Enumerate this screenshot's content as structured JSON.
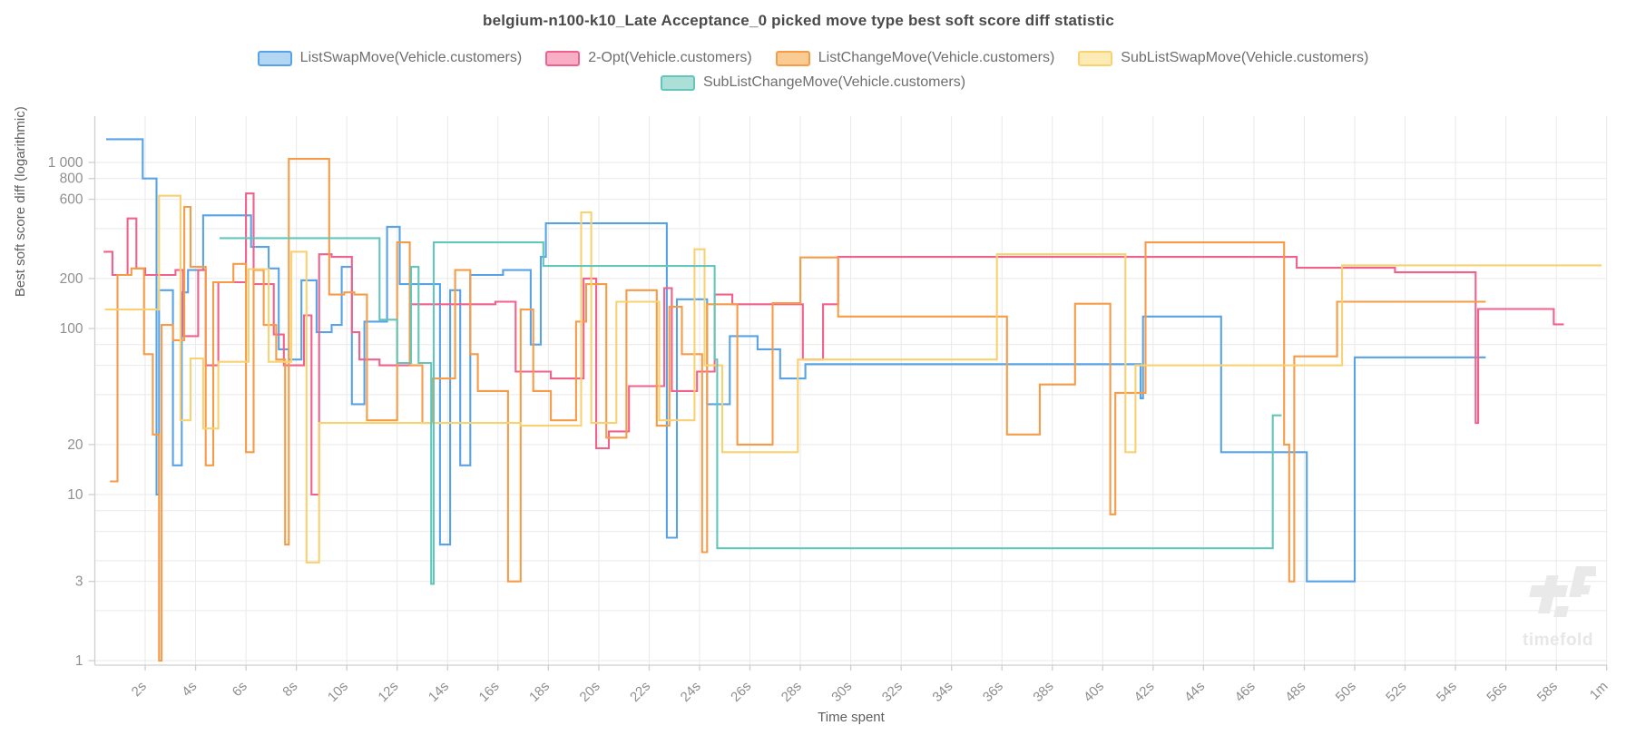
{
  "title": "belgium-n100-k10_Late Acceptance_0 picked move type best soft score diff statistic",
  "watermark": {
    "text": "timefold"
  },
  "chart_data": {
    "type": "line",
    "step": "after",
    "title": "belgium-n100-k10_Late Acceptance_0 picked move type best soft score diff statistic",
    "xlabel": "Time spent",
    "ylabel": "Best soft score diff (logarithmic)",
    "x_unit": "seconds",
    "y_scale": "log",
    "ylim": [
      1,
      2000
    ],
    "xlim": [
      0,
      60
    ],
    "grid": true,
    "legend_position": "top",
    "x_ticks": [
      {
        "t": 2,
        "label": "2s"
      },
      {
        "t": 4,
        "label": "4s"
      },
      {
        "t": 6,
        "label": "6s"
      },
      {
        "t": 8,
        "label": "8s"
      },
      {
        "t": 10,
        "label": "10s"
      },
      {
        "t": 12,
        "label": "12s"
      },
      {
        "t": 14,
        "label": "14s"
      },
      {
        "t": 16,
        "label": "16s"
      },
      {
        "t": 18,
        "label": "18s"
      },
      {
        "t": 20,
        "label": "20s"
      },
      {
        "t": 22,
        "label": "22s"
      },
      {
        "t": 24,
        "label": "24s"
      },
      {
        "t": 26,
        "label": "26s"
      },
      {
        "t": 28,
        "label": "28s"
      },
      {
        "t": 30,
        "label": "30s"
      },
      {
        "t": 32,
        "label": "32s"
      },
      {
        "t": 34,
        "label": "34s"
      },
      {
        "t": 36,
        "label": "36s"
      },
      {
        "t": 38,
        "label": "38s"
      },
      {
        "t": 40,
        "label": "40s"
      },
      {
        "t": 42,
        "label": "42s"
      },
      {
        "t": 44,
        "label": "44s"
      },
      {
        "t": 46,
        "label": "46s"
      },
      {
        "t": 48,
        "label": "48s"
      },
      {
        "t": 50,
        "label": "50s"
      },
      {
        "t": 52,
        "label": "52s"
      },
      {
        "t": 54,
        "label": "54s"
      },
      {
        "t": 56,
        "label": "56s"
      },
      {
        "t": 58,
        "label": "58s"
      },
      {
        "t": 60,
        "label": "1m"
      }
    ],
    "y_ticks": [
      {
        "v": 1000,
        "label": "1 000"
      },
      {
        "v": 800,
        "label": "800"
      },
      {
        "v": 600,
        "label": "600"
      },
      {
        "v": 200,
        "label": "200"
      },
      {
        "v": 100,
        "label": "100"
      },
      {
        "v": 20,
        "label": "20"
      },
      {
        "v": 10,
        "label": "10"
      },
      {
        "v": 3,
        "label": "3"
      },
      {
        "v": 1,
        "label": "1"
      }
    ],
    "y_gridlines": [
      1,
      2,
      3,
      4,
      6,
      8,
      10,
      20,
      40,
      60,
      80,
      100,
      200,
      400,
      600,
      800,
      1000
    ],
    "series": [
      {
        "name": "ListSwapMove(Vehicle.customers)",
        "color": "#58a3e8",
        "fill": "#b3d7f2",
        "points": [
          [
            0.45,
            1380
          ],
          [
            1.9,
            800
          ],
          [
            2.45,
            10
          ],
          [
            2.55,
            170
          ],
          [
            3.1,
            15
          ],
          [
            3.45,
            165
          ],
          [
            3.7,
            225
          ],
          [
            4.3,
            480
          ],
          [
            6.2,
            310
          ],
          [
            6.9,
            230
          ],
          [
            7.3,
            75
          ],
          [
            7.7,
            65
          ],
          [
            8.2,
            195
          ],
          [
            8.8,
            95
          ],
          [
            9.4,
            105
          ],
          [
            9.8,
            235
          ],
          [
            10.2,
            35
          ],
          [
            10.7,
            110
          ],
          [
            11.6,
            410
          ],
          [
            12.1,
            185
          ],
          [
            13.7,
            5
          ],
          [
            14.1,
            170
          ],
          [
            14.5,
            15
          ],
          [
            14.9,
            210
          ],
          [
            16.2,
            225
          ],
          [
            17.3,
            80
          ],
          [
            17.7,
            270
          ],
          [
            17.9,
            430
          ],
          [
            22.7,
            5.5
          ],
          [
            23.1,
            150
          ],
          [
            24.3,
            35
          ],
          [
            25.2,
            90
          ],
          [
            26.3,
            75
          ],
          [
            27.2,
            50
          ],
          [
            28.2,
            61
          ],
          [
            41.5,
            38
          ],
          [
            41.6,
            118
          ],
          [
            44.7,
            18
          ],
          [
            48.1,
            3
          ],
          [
            50.0,
            67
          ],
          [
            55.2,
            67
          ]
        ]
      },
      {
        "name": "2-Opt(Vehicle.customers)",
        "color": "#f0618c",
        "fill": "#f7aec6",
        "points": [
          [
            0.35,
            290
          ],
          [
            0.7,
            210
          ],
          [
            1.3,
            460
          ],
          [
            1.65,
            230
          ],
          [
            2.0,
            210
          ],
          [
            3.2,
            225
          ],
          [
            3.5,
            90
          ],
          [
            4.1,
            225
          ],
          [
            4.4,
            60
          ],
          [
            4.9,
            190
          ],
          [
            6.0,
            650
          ],
          [
            6.3,
            185
          ],
          [
            7.1,
            92
          ],
          [
            7.5,
            60
          ],
          [
            8.3,
            120
          ],
          [
            8.6,
            10
          ],
          [
            8.9,
            280
          ],
          [
            9.4,
            270
          ],
          [
            10.2,
            95
          ],
          [
            10.5,
            65
          ],
          [
            11.3,
            60
          ],
          [
            12.5,
            140
          ],
          [
            15.9,
            145
          ],
          [
            16.7,
            55
          ],
          [
            18.1,
            50
          ],
          [
            19.4,
            200
          ],
          [
            19.9,
            19
          ],
          [
            20.4,
            24
          ],
          [
            21.2,
            45
          ],
          [
            22.6,
            175
          ],
          [
            22.9,
            42
          ],
          [
            23.9,
            55
          ],
          [
            24.6,
            160
          ],
          [
            25.3,
            140
          ],
          [
            28.1,
            65
          ],
          [
            28.9,
            140
          ],
          [
            29.5,
            270
          ],
          [
            47.7,
            232
          ],
          [
            51.6,
            218
          ],
          [
            54.8,
            27
          ],
          [
            54.9,
            131
          ],
          [
            57.9,
            106
          ],
          [
            58.3,
            106
          ]
        ]
      },
      {
        "name": "ListChangeMove(Vehicle.customers)",
        "color": "#f69c49",
        "fill": "#facb92",
        "points": [
          [
            0.6,
            12
          ],
          [
            0.9,
            210
          ],
          [
            1.45,
            230
          ],
          [
            1.95,
            70
          ],
          [
            2.3,
            23
          ],
          [
            2.55,
            1
          ],
          [
            2.65,
            105
          ],
          [
            3.1,
            85
          ],
          [
            3.55,
            540
          ],
          [
            3.8,
            235
          ],
          [
            4.4,
            15
          ],
          [
            4.7,
            190
          ],
          [
            5.5,
            245
          ],
          [
            6.0,
            18
          ],
          [
            6.3,
            225
          ],
          [
            6.7,
            105
          ],
          [
            7.2,
            65
          ],
          [
            7.55,
            5
          ],
          [
            7.7,
            1050
          ],
          [
            9.3,
            160
          ],
          [
            9.9,
            165
          ],
          [
            10.3,
            160
          ],
          [
            10.8,
            28
          ],
          [
            12.0,
            330
          ],
          [
            12.5,
            60
          ],
          [
            13.0,
            27
          ],
          [
            13.4,
            50
          ],
          [
            14.3,
            225
          ],
          [
            14.9,
            70
          ],
          [
            15.2,
            42
          ],
          [
            16.4,
            3
          ],
          [
            16.9,
            130
          ],
          [
            17.4,
            42
          ],
          [
            18.1,
            28
          ],
          [
            19.1,
            110
          ],
          [
            19.5,
            185
          ],
          [
            20.3,
            22
          ],
          [
            21.1,
            170
          ],
          [
            22.3,
            26
          ],
          [
            22.8,
            135
          ],
          [
            23.3,
            70
          ],
          [
            24.1,
            4.5
          ],
          [
            24.3,
            140
          ],
          [
            25.5,
            20
          ],
          [
            26.9,
            142
          ],
          [
            28.0,
            268
          ],
          [
            29.5,
            118
          ],
          [
            36.2,
            23
          ],
          [
            37.5,
            46
          ],
          [
            38.9,
            141
          ],
          [
            40.3,
            7.6
          ],
          [
            40.5,
            41
          ],
          [
            41.7,
            330
          ],
          [
            47.2,
            20
          ],
          [
            47.4,
            3
          ],
          [
            47.6,
            68
          ],
          [
            49.3,
            145
          ],
          [
            55.2,
            145
          ]
        ]
      },
      {
        "name": "SubListSwapMove(Vehicle.customers)",
        "color": "#f8d171",
        "fill": "#fcebb5",
        "points": [
          [
            0.4,
            130
          ],
          [
            2.55,
            630
          ],
          [
            3.4,
            28
          ],
          [
            3.8,
            66
          ],
          [
            4.3,
            25
          ],
          [
            4.9,
            63
          ],
          [
            6.1,
            228
          ],
          [
            6.9,
            63
          ],
          [
            7.8,
            290
          ],
          [
            8.4,
            3.9
          ],
          [
            8.9,
            27
          ],
          [
            16.9,
            26
          ],
          [
            19.3,
            500
          ],
          [
            19.7,
            27
          ],
          [
            20.7,
            145
          ],
          [
            22.4,
            28
          ],
          [
            23.8,
            300
          ],
          [
            24.2,
            60
          ],
          [
            24.9,
            18
          ],
          [
            27.9,
            65
          ],
          [
            35.8,
            280
          ],
          [
            40.9,
            18
          ],
          [
            41.3,
            60
          ],
          [
            49.5,
            240
          ],
          [
            59.8,
            240
          ]
        ]
      },
      {
        "name": "SubListChangeMove(Vehicle.customers)",
        "color": "#63c6ba",
        "fill": "#abdfd8",
        "points": [
          [
            4.95,
            350
          ],
          [
            11.3,
            113
          ],
          [
            12.0,
            62
          ],
          [
            12.55,
            235
          ],
          [
            12.85,
            62
          ],
          [
            13.35,
            2.9
          ],
          [
            13.45,
            330
          ],
          [
            17.8,
            238
          ],
          [
            24.6,
            65
          ],
          [
            24.7,
            4.75
          ],
          [
            46.75,
            30
          ],
          [
            47.1,
            30
          ]
        ]
      }
    ],
    "legend_rows": [
      [
        0,
        1,
        2,
        3
      ],
      [
        4
      ]
    ]
  },
  "style": {
    "grid_color": "#e9e9e9",
    "axis_color": "#cfcfcf",
    "tick_label_color": "#8f8f8f",
    "watermark_color": "#e9e9e9"
  }
}
